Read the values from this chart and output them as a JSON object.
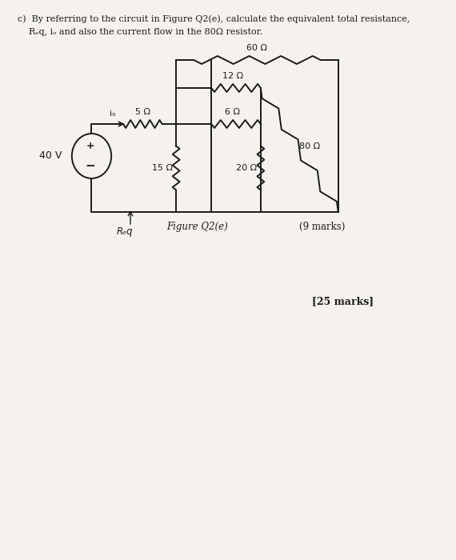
{
  "bg_color": "#f5f2ee",
  "text_color": "#1a1a1a",
  "line1": "c)  By referring to the circuit in Figure Q2(e), calculate the equivalent total resistance,",
  "line2": "    Rₑq, iₒ and also the current flow in the 80Ω resistor.",
  "figure_label": "Figure Q2(e)",
  "marks_note": "(9 marks)",
  "total_marks": "[25 marks]",
  "r5_label": "5 Ω",
  "r60_label": "60 Ω",
  "r12_label": "12 Ω",
  "r6_label": "6 Ω",
  "r15_label": "15 Ω",
  "r20_label": "20 Ω",
  "r80_label": "80 Ω",
  "vs_label": "40 V",
  "io_label": "iₒ",
  "req_label": "Rₑq"
}
